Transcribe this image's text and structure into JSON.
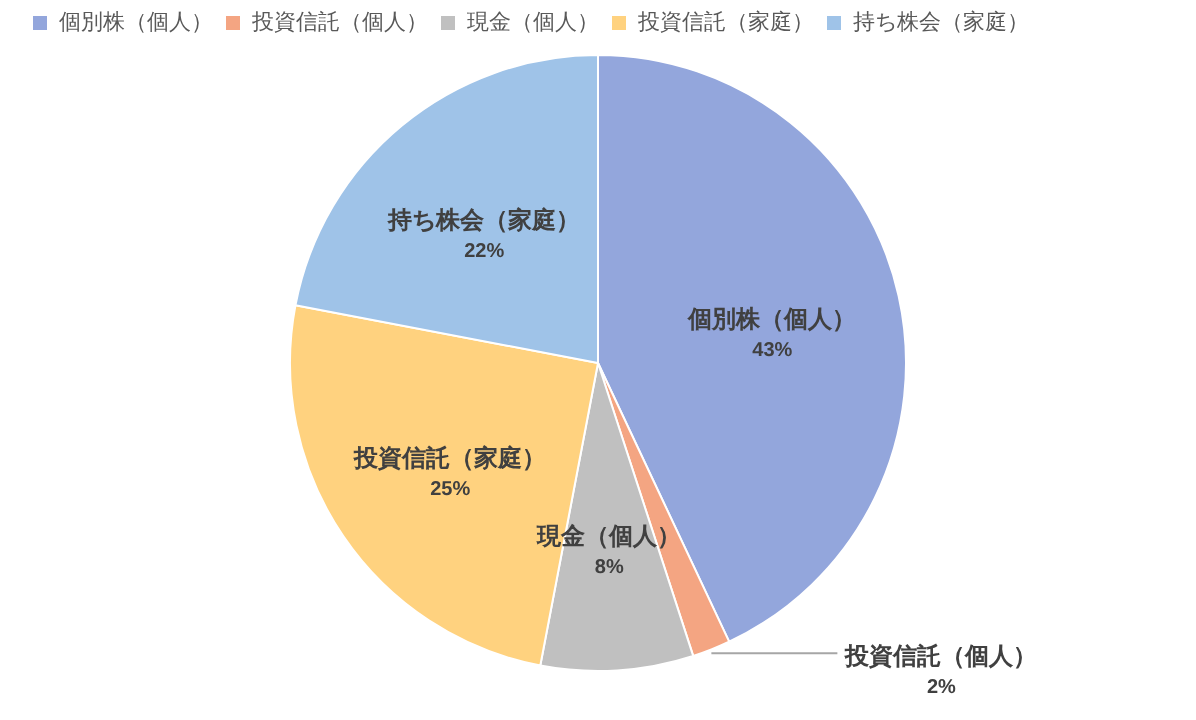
{
  "chart_data": {
    "type": "pie",
    "categories": [
      "個別株（個人）",
      "投資信託（個人）",
      "現金（個人）",
      "投資信託（家庭）",
      "持ち株会（家庭）"
    ],
    "values": [
      43,
      2,
      8,
      25,
      22
    ],
    "colors": [
      "#93a6dc",
      "#f4a582",
      "#c0c0c0",
      "#ffd27f",
      "#9fc3e8"
    ],
    "value_labels": [
      "43%",
      "2%",
      "8%",
      "25%",
      "22%"
    ],
    "legend": "top left"
  }
}
